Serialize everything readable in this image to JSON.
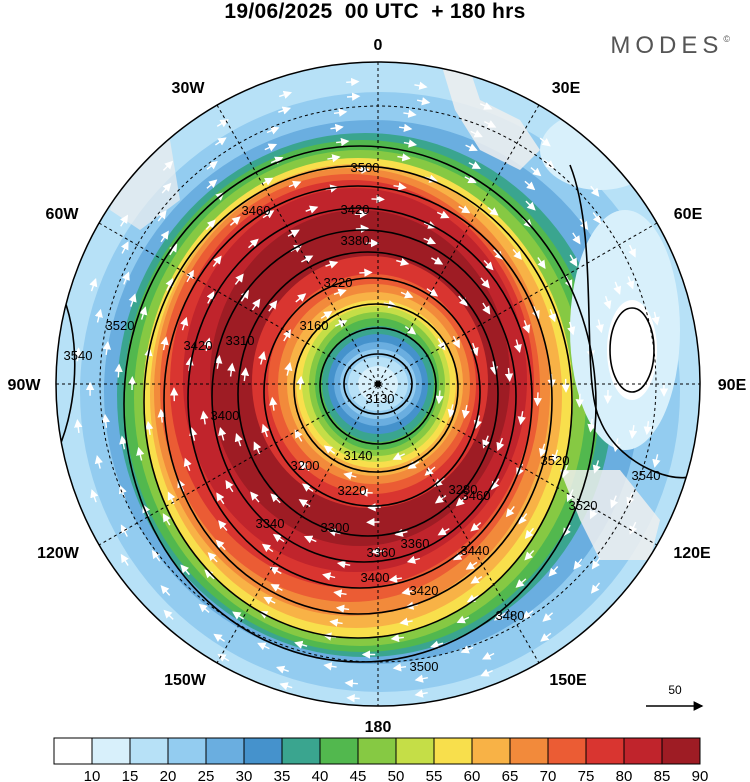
{
  "header": {
    "title": "19/06/2025  00 UTC  + 180 hrs",
    "brand": "MODES",
    "brand_mark": "©"
  },
  "map": {
    "projection": "polar-stereographic-south",
    "longitude_labels": {
      "top": "0",
      "top_left": "30W",
      "top_right": "30E",
      "left_upper": "60W",
      "right_upper": "60E",
      "left": "90W",
      "right": "90E",
      "left_lower": "120W",
      "right_lower": "120E",
      "bottom_left": "150W",
      "bottom_right": "150E",
      "bottom": "180"
    },
    "contour_labels": [
      "3500",
      "3460",
      "3420",
      "3380",
      "3220",
      "3160",
      "3130",
      "3140",
      "3200",
      "3220",
      "3280",
      "3300",
      "3340",
      "3360",
      "3400",
      "3420",
      "3440",
      "3460",
      "3480",
      "3500",
      "3520",
      "3540",
      "3520",
      "3520",
      "3540",
      "3420",
      "3310",
      "3400",
      "3360"
    ],
    "colors": {
      "land": "#eeeeee",
      "contour": "#000000",
      "arrows": "#ffffff",
      "grid": "#000000"
    }
  },
  "reference_vector": {
    "label": "50"
  },
  "colorbar": {
    "ticks": [
      "10",
      "15",
      "20",
      "25",
      "30",
      "35",
      "40",
      "45",
      "50",
      "55",
      "60",
      "65",
      "70",
      "75",
      "80",
      "85",
      "90"
    ],
    "colors": [
      "#ffffff",
      "#d8f0fb",
      "#b7e1f7",
      "#93ccf0",
      "#6aaee0",
      "#4592cc",
      "#3aa58f",
      "#52b84e",
      "#86c943",
      "#c5de47",
      "#f8df4c",
      "#f8b246",
      "#f28a3b",
      "#eb5c34",
      "#d93530",
      "#c0242c",
      "#9e1c24"
    ]
  }
}
